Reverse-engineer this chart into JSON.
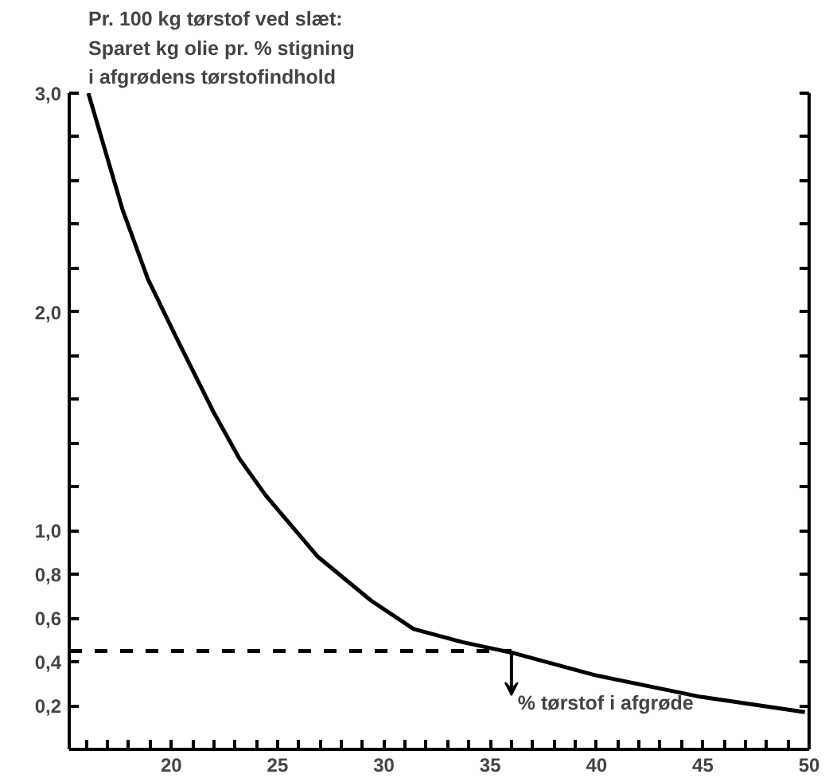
{
  "chart_data": {
    "type": "line",
    "title": "Pr. 100 kg tørstof ved slæt:\nSparet kg olie pr. % stigning\ni afgrødens tørstofindhold",
    "xlim": [
      15.2,
      50
    ],
    "xticks": [
      {
        "value": 16,
        "label": null
      },
      {
        "value": 17,
        "label": null
      },
      {
        "value": 18,
        "label": null
      },
      {
        "value": 19,
        "label": null
      },
      20,
      {
        "value": 21,
        "label": null
      },
      {
        "value": 22,
        "label": null
      },
      {
        "value": 23,
        "label": null
      },
      {
        "value": 24,
        "label": null
      },
      25,
      {
        "value": 26,
        "label": null
      },
      {
        "value": 27,
        "label": null
      },
      {
        "value": 28,
        "label": null
      },
      {
        "value": 29,
        "label": null
      },
      30,
      {
        "value": 31,
        "label": null
      },
      {
        "value": 32,
        "label": null
      },
      {
        "value": 33,
        "label": null
      },
      {
        "value": 34,
        "label": null
      },
      35,
      {
        "value": 36,
        "label": null
      },
      {
        "value": 37,
        "label": null
      },
      {
        "value": 38,
        "label": null
      },
      {
        "value": 39,
        "label": null
      },
      40,
      {
        "value": 41,
        "label": null
      },
      {
        "value": 42,
        "label": null
      },
      {
        "value": 43,
        "label": null
      },
      {
        "value": 44,
        "label": null
      },
      45,
      {
        "value": 46,
        "label": null
      },
      {
        "value": 47,
        "label": null
      },
      {
        "value": 48,
        "label": null
      },
      {
        "value": 49,
        "label": null
      },
      50
    ],
    "ylim": [
      0,
      3.0
    ],
    "yticks": [
      {
        "value": 0.2,
        "label": "0,2"
      },
      {
        "value": 0.4,
        "label": "0,4"
      },
      {
        "value": 0.6,
        "label": "0,6"
      },
      {
        "value": 0.8,
        "label": "0,8"
      },
      {
        "value": 1.0,
        "label": "1,0"
      },
      {
        "value": 1.2,
        "label": null
      },
      {
        "value": 1.4,
        "label": null
      },
      {
        "value": 1.6,
        "label": null
      },
      {
        "value": 1.8,
        "label": null
      },
      {
        "value": 2.0,
        "label": "2,0"
      },
      {
        "value": 2.2,
        "label": null
      },
      {
        "value": 2.4,
        "label": null
      },
      {
        "value": 2.6,
        "label": null
      },
      {
        "value": 2.8,
        "label": null
      },
      {
        "value": 3.0,
        "label": "3,0"
      }
    ],
    "grid": false,
    "series": [
      {
        "color": "#000000",
        "line_style": "solid",
        "x": [
          16.1,
          17.7,
          18.9,
          20.2,
          22.0,
          23.2,
          24.45,
          26.9,
          29.4,
          31.4,
          33.7,
          36.1,
          39.9,
          44.9,
          49.8
        ],
        "values": [
          3.0,
          2.47,
          2.15,
          1.89,
          1.54,
          1.33,
          1.16,
          0.88,
          0.68,
          0.55,
          0.49,
          0.44,
          0.34,
          0.24,
          0.17
        ]
      },
      {
        "color": "#000000",
        "line_style": "dashed",
        "x": [
          15.2,
          36.0
        ],
        "values": [
          0.45,
          0.45
        ]
      }
    ],
    "annotations": [
      {
        "text": "% tørstof i afgrøde",
        "x": 36.0,
        "y": 0.45
      }
    ]
  }
}
